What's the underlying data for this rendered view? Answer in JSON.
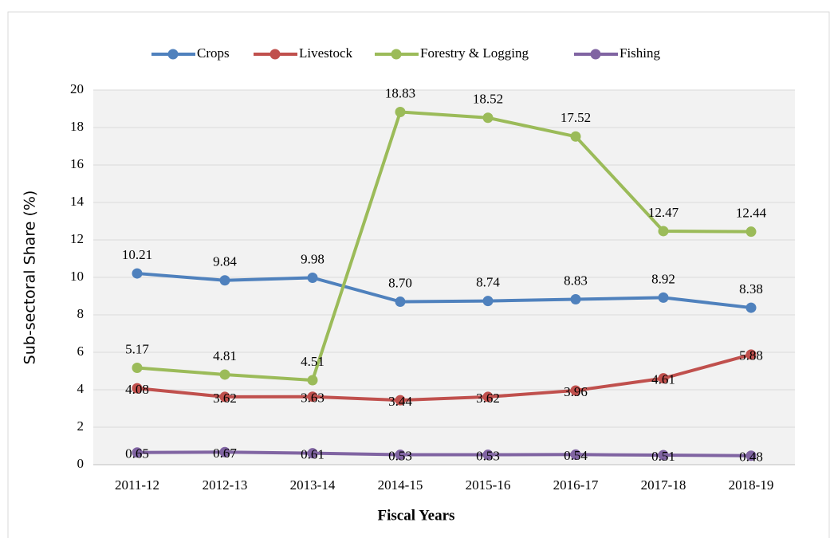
{
  "chart_data": {
    "type": "line",
    "x_label": "Fiscal Years",
    "y_label": "Sub-sectoral Share (%)",
    "categories": [
      "2011-12",
      "2012-13",
      "2013-14",
      "2014-15",
      "2015-16",
      "2016-17",
      "2017-18",
      "2018-19"
    ],
    "series": [
      {
        "name": "Crops",
        "color": "#4f81bd",
        "values": [
          10.21,
          9.84,
          9.98,
          8.7,
          8.74,
          8.83,
          8.92,
          8.38
        ],
        "value_labels": [
          "10.21",
          "9.84",
          "9.98",
          "8.70",
          "8.74",
          "8.83",
          "8.92",
          "8.38"
        ]
      },
      {
        "name": "Livestock",
        "color": "#c0504d",
        "values": [
          4.08,
          3.62,
          3.63,
          3.44,
          3.62,
          3.96,
          4.61,
          5.88
        ],
        "value_labels": [
          "4.08",
          "3.62",
          "3.63",
          "3.44",
          "3.62",
          "3.96",
          "4.61",
          "5.88"
        ]
      },
      {
        "name": "Forestry & Logging",
        "color": "#9bbb59",
        "values": [
          5.17,
          4.81,
          4.51,
          18.83,
          18.52,
          17.52,
          12.47,
          12.44
        ],
        "value_labels": [
          "5.17",
          "4.81",
          "4.51",
          "18.83",
          "18.52",
          "17.52",
          "12.47",
          "12.44"
        ]
      },
      {
        "name": "Fishing",
        "color": "#8064a2",
        "values": [
          0.65,
          0.67,
          0.61,
          0.53,
          0.53,
          0.54,
          0.51,
          0.48
        ],
        "value_labels": [
          "0.65",
          "0.67",
          "0.61",
          "0.53",
          "0.53",
          "0.54",
          "0.51",
          "0.48"
        ]
      }
    ],
    "ylim": [
      0,
      20
    ],
    "yticks": [
      0,
      2,
      4,
      6,
      8,
      10,
      12,
      14,
      16,
      18,
      20
    ],
    "grid": true,
    "legend": "top"
  }
}
